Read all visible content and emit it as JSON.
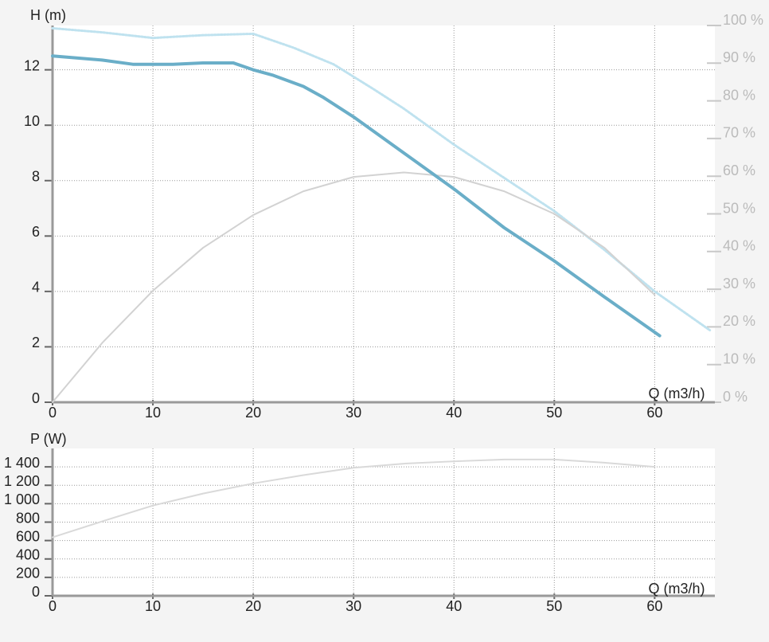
{
  "chart_data": [
    {
      "type": "line",
      "y_label": "H (m)",
      "x_label": "Q (m3/h)",
      "xlim": [
        0,
        66
      ],
      "xticks": [
        0,
        10,
        20,
        30,
        40,
        50,
        60
      ],
      "ylim": [
        0,
        13.6
      ],
      "yticks": [
        0,
        2,
        4,
        6,
        8,
        10,
        12
      ],
      "y2lim": [
        0,
        100
      ],
      "y2ticks": [
        {
          "value": 0,
          "label": "0 %"
        },
        {
          "value": 10,
          "label": "10 %"
        },
        {
          "value": 20,
          "label": "20 %"
        },
        {
          "value": 30,
          "label": "30 %"
        },
        {
          "value": 40,
          "label": "40 %"
        },
        {
          "value": 50,
          "label": "50 %"
        },
        {
          "value": 60,
          "label": "60 %"
        },
        {
          "value": 70,
          "label": "70 %"
        },
        {
          "value": 80,
          "label": "80 %"
        },
        {
          "value": 90,
          "label": "90 %"
        },
        {
          "value": 100,
          "label": "100 %"
        }
      ],
      "grid": true,
      "series": [
        {
          "color": "#bfe2ef",
          "style": "dotted",
          "x": [
            0,
            5,
            10,
            15,
            20,
            24,
            28,
            32,
            35,
            40,
            45,
            50,
            55,
            60,
            65.5
          ],
          "values": [
            13.5,
            13.35,
            13.15,
            13.25,
            13.3,
            12.8,
            12.2,
            11.3,
            10.6,
            9.3,
            8.1,
            6.9,
            5.5,
            4.0,
            2.6
          ]
        },
        {
          "color": "#d2d2d2",
          "style": "solid",
          "axis": "y2",
          "x": [
            0,
            5,
            10,
            15,
            20,
            25,
            30,
            35,
            40,
            45,
            50,
            55,
            60
          ],
          "values": [
            0,
            15.9,
            29.6,
            41,
            49.7,
            56,
            59.8,
            61,
            59.8,
            56,
            50,
            41,
            28.5
          ]
        },
        {
          "color": "#6aaec8",
          "style": "solid",
          "x": [
            0,
            5,
            8,
            12,
            15,
            18,
            20,
            22,
            25,
            27,
            30,
            35,
            40,
            45,
            50,
            55,
            60.5
          ],
          "values": [
            12.5,
            12.35,
            12.2,
            12.2,
            12.25,
            12.25,
            12.0,
            11.8,
            11.4,
            11.0,
            10.3,
            9.0,
            7.7,
            6.3,
            5.1,
            3.8,
            2.4
          ]
        }
      ]
    },
    {
      "type": "line",
      "y_label": "P (W)",
      "x_label": "Q (m3/h)",
      "xlim": [
        0,
        66
      ],
      "xticks": [
        0,
        10,
        20,
        30,
        40,
        50,
        60
      ],
      "ylim": [
        0,
        1600
      ],
      "yticks": [
        0,
        200,
        400,
        600,
        800,
        {
          "value": 1000,
          "label": "1 000"
        },
        {
          "value": 1200,
          "label": "1 200"
        },
        {
          "value": 1400,
          "label": "1 400"
        }
      ],
      "grid": true,
      "series": [
        {
          "color": "#d9d9d9",
          "style": "solid",
          "x": [
            0,
            5,
            10,
            15,
            20,
            25,
            30,
            35,
            40,
            45,
            50,
            55,
            60
          ],
          "values": [
            635,
            810,
            980,
            1110,
            1220,
            1310,
            1390,
            1435,
            1460,
            1480,
            1480,
            1445,
            1400
          ]
        }
      ]
    }
  ]
}
